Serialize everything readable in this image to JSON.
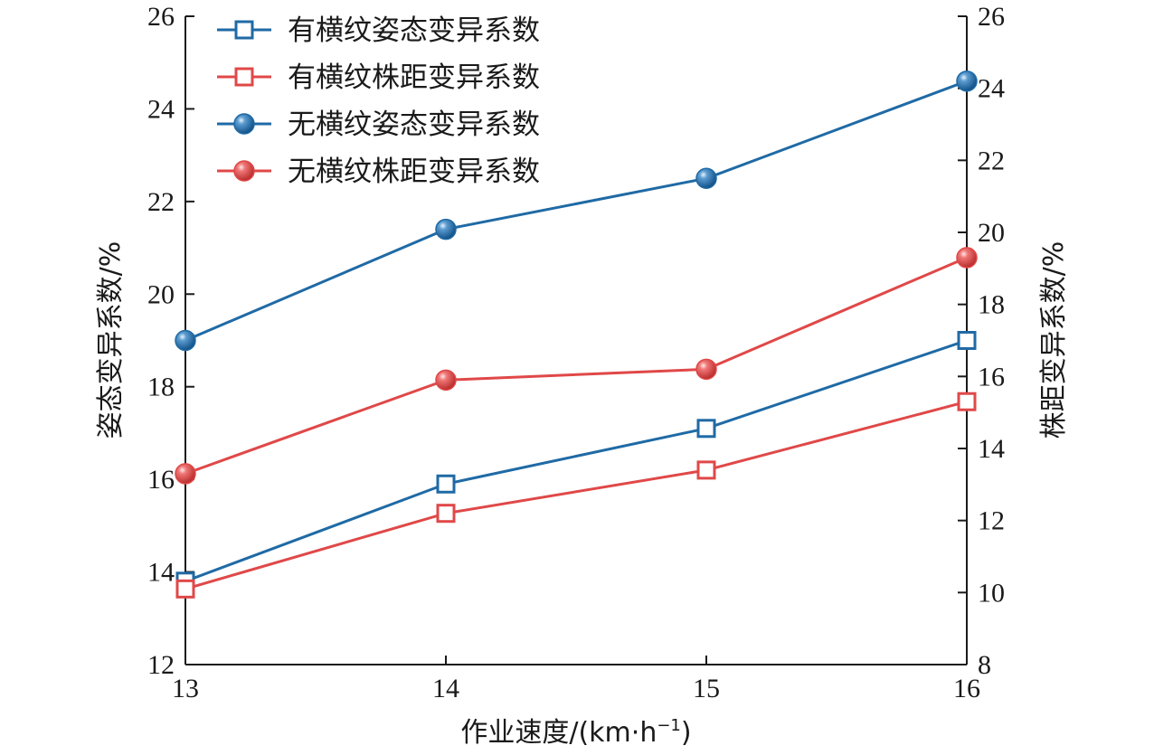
{
  "chart_data": {
    "type": "line",
    "x": [
      13,
      14,
      15,
      16
    ],
    "xlabel": "作业速度/(km·h",
    "xlabel_sup": "−1",
    "xlabel_close": ")",
    "xlim": [
      13,
      16
    ],
    "xticks": [
      "13",
      "14",
      "15",
      "16"
    ],
    "ylabel_left": "姿态变异系数/%",
    "ylim_left": [
      12,
      26
    ],
    "yticks_left": [
      "12",
      "14",
      "16",
      "18",
      "20",
      "22",
      "24",
      "26"
    ],
    "ylabel_right": "株距变异系数/%",
    "ylim_right": [
      8,
      26
    ],
    "yticks_right": [
      "8",
      "10",
      "12",
      "14",
      "16",
      "18",
      "20",
      "22",
      "24",
      "26"
    ],
    "grid": false,
    "legend_position": "top-left",
    "series": [
      {
        "name": "有横纹姿态变异系数",
        "axis": "left",
        "marker": "square",
        "color": "#1f6aa5",
        "values": [
          13.8,
          15.9,
          17.1,
          19.0
        ]
      },
      {
        "name": "有横纹株距变异系数",
        "axis": "right",
        "marker": "square",
        "color": "#e04848",
        "values": [
          10.1,
          12.2,
          13.4,
          15.3
        ]
      },
      {
        "name": "无横纹姿态变异系数",
        "axis": "left",
        "marker": "circle",
        "color": "#1f6aa5",
        "values": [
          19.0,
          21.4,
          22.5,
          24.6
        ]
      },
      {
        "name": "无横纹株距变异系数",
        "axis": "right",
        "marker": "circle",
        "color": "#e04848",
        "values": [
          13.3,
          15.9,
          16.2,
          19.3
        ]
      }
    ]
  }
}
